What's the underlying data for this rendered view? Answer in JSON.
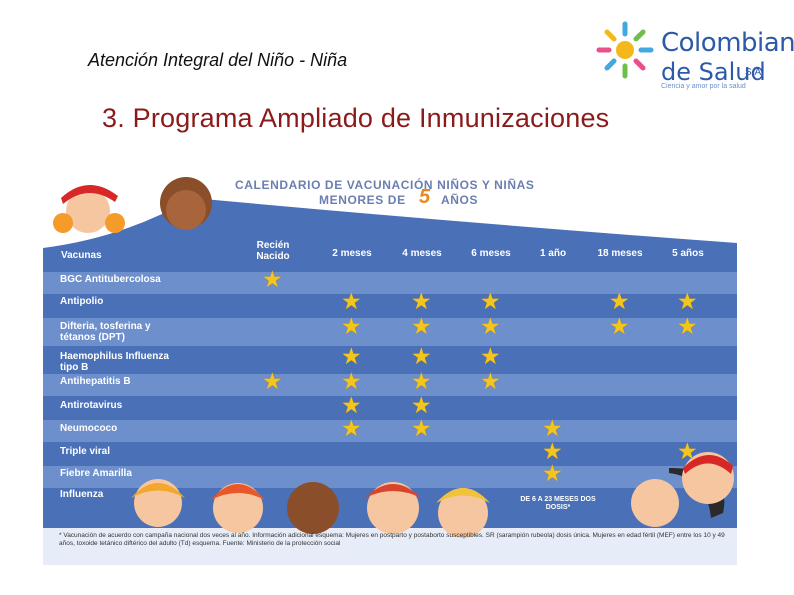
{
  "header": {
    "title": "Atención Integral del Niño - Niña"
  },
  "main": {
    "title": "3. Programa Ampliado de Inmunizaciones"
  },
  "logo": {
    "line1": "Colombiana",
    "line2": "de Salud",
    "sa": "S.A.",
    "tagline": "Ciencia y amor por la salud"
  },
  "calendar": {
    "title_line1": "CALENDARIO DE VACUNACIÓN NIÑOS Y NIÑAS",
    "title_line2": "MENORES DE",
    "title_five": "5",
    "title_anos": "AÑOS",
    "vaccines_header": "Vacunas",
    "columns": [
      "Recién Nacido",
      "2 meses",
      "4 meses",
      "6 meses",
      "1 año",
      "18 meses",
      "5 años"
    ],
    "rows": [
      {
        "label": "BGC Antitubercolosa",
        "marks": [
          1,
          0,
          0,
          0,
          0,
          0,
          0
        ]
      },
      {
        "label": "Antipolio",
        "marks": [
          0,
          1,
          1,
          1,
          0,
          1,
          1
        ]
      },
      {
        "label": "Difteria, tosferina y tétanos (DPT)",
        "marks": [
          0,
          1,
          1,
          1,
          0,
          1,
          1
        ]
      },
      {
        "label": "Haemophilus Influenza tipo B",
        "marks": [
          0,
          1,
          1,
          1,
          0,
          0,
          0
        ]
      },
      {
        "label": "Antihepatitis B",
        "marks": [
          1,
          1,
          1,
          1,
          0,
          0,
          0
        ]
      },
      {
        "label": "Antirotavirus",
        "marks": [
          0,
          1,
          1,
          0,
          0,
          0,
          0
        ]
      },
      {
        "label": "Neumococo",
        "marks": [
          0,
          1,
          1,
          0,
          1,
          0,
          0
        ]
      },
      {
        "label": "Triple viral",
        "marks": [
          0,
          0,
          0,
          0,
          1,
          0,
          1
        ]
      },
      {
        "label": "Fiebre Amarilla",
        "marks": [
          0,
          0,
          0,
          0,
          1,
          0,
          0
        ]
      },
      {
        "label": "Influenza",
        "marks": [
          0,
          0,
          0,
          0,
          0,
          0,
          0
        ]
      }
    ],
    "influenza_badge": "DE 6 A 23 MESES DOS DOSIS*",
    "note": "* Vacunación de acuerdo con campaña nacional dos veces al año. Información adicional esquema: Mujeres en postparto y postaborto susceptibles. SR (sarampión rubeola) dosis única. Mujeres en edad fértil (MEF) entre los 10 y 49 años, toxoide tetánico diftérico del adulto (Td) esquema. Fuente: Ministerio de la protección social"
  },
  "colors": {
    "title": "#8b1a1a",
    "band_blue": "#4a70b8",
    "star": "#f4c51c",
    "logo": "#2d5aa8"
  }
}
